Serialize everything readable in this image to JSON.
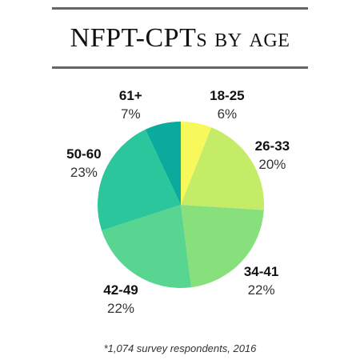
{
  "title": "NFPT-CPTs by age",
  "footnote": "*1,074 survey respondents, 2016",
  "chart_data": {
    "type": "pie",
    "title": "NFPT-CPTs by age",
    "start": "12 o'clock",
    "direction": "clockwise",
    "slices": [
      {
        "label": "18-25",
        "value": 6,
        "value_label": "6%",
        "color": "#f7f95a"
      },
      {
        "label": "26-33",
        "value": 20,
        "value_label": "20%",
        "color": "#c4ec66"
      },
      {
        "label": "34-41",
        "value": 22,
        "value_label": "22%",
        "color": "#88e07c"
      },
      {
        "label": "42-49",
        "value": 22,
        "value_label": "22%",
        "color": "#57d591"
      },
      {
        "label": "50-60",
        "value": 23,
        "value_label": "23%",
        "color": "#2cc69d"
      },
      {
        "label": "61+",
        "value": 7,
        "value_label": "7%",
        "color": "#0aab9c"
      }
    ]
  }
}
